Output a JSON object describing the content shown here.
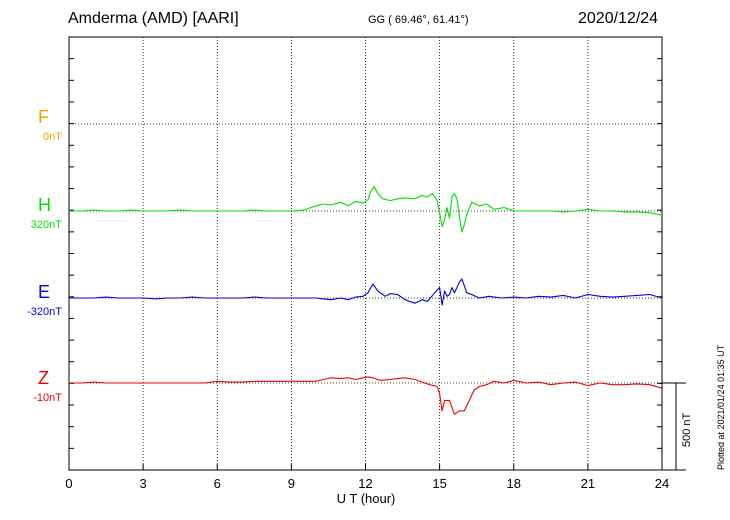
{
  "header": {
    "station": "Amderma (AMD)  [AARI]",
    "coords": "GG ( 69.46°,  61.41°)",
    "date": "2020/12/24"
  },
  "plotted_note": "Plotted at 2021/01/24 01:35 UT",
  "scale_label": "500 nT",
  "colors": {
    "F": "#f5a200",
    "H": "#00e000",
    "E": "#0000dd",
    "Z": "#ee0000"
  },
  "components": [
    {
      "name": "F",
      "baseline": "0nT"
    },
    {
      "name": "H",
      "baseline": "320nT"
    },
    {
      "name": "E",
      "baseline": "-320nT"
    },
    {
      "name": "Z",
      "baseline": "-10nT"
    }
  ],
  "chart_data": {
    "type": "line",
    "title": "Amderma (AMD)  [AARI]",
    "xlabel": "U T (hour)",
    "xlim": [
      0,
      24
    ],
    "x_ticks": [
      0,
      3,
      6,
      9,
      12,
      15,
      18,
      21,
      24
    ],
    "grid": true,
    "series": [
      {
        "name": "H",
        "baseline": "320nT",
        "x": [
          0,
          0.5,
          1,
          1.5,
          2,
          2.5,
          3,
          3.5,
          4,
          4.5,
          5,
          5.5,
          6,
          6.5,
          7,
          7.5,
          8,
          8.5,
          9,
          9.5,
          10,
          10.3,
          10.6,
          11,
          11.3,
          11.6,
          11.9,
          12.1,
          12.2,
          12.35,
          12.5,
          12.7,
          13,
          13.3,
          13.6,
          14,
          14.3,
          14.5,
          14.7,
          14.9,
          15.0,
          15.1,
          15.2,
          15.3,
          15.4,
          15.5,
          15.6,
          15.7,
          15.8,
          15.9,
          16.0,
          16.1,
          16.3,
          16.6,
          16.9,
          17.2,
          17.6,
          18,
          18.5,
          19,
          19.5,
          20,
          20.5,
          21,
          21.5,
          22,
          22.5,
          23,
          23.5,
          24
        ],
        "values": [
          0,
          0,
          5,
          0,
          0,
          5,
          0,
          0,
          0,
          5,
          0,
          0,
          0,
          0,
          0,
          5,
          0,
          0,
          0,
          5,
          30,
          40,
          35,
          50,
          30,
          55,
          45,
          65,
          110,
          140,
          100,
          70,
          60,
          70,
          75,
          70,
          90,
          80,
          100,
          60,
          -10,
          -90,
          -50,
          20,
          -40,
          80,
          100,
          70,
          -30,
          -120,
          -80,
          -20,
          50,
          30,
          40,
          10,
          20,
          0,
          0,
          0,
          0,
          -5,
          0,
          10,
          0,
          0,
          -5,
          -5,
          -10,
          -25
        ]
      },
      {
        "name": "E",
        "baseline": "-320nT",
        "x": [
          0,
          0.5,
          1,
          1.5,
          2,
          2.5,
          3,
          3.5,
          4,
          4.5,
          5,
          5.5,
          6,
          6.5,
          7,
          7.5,
          8,
          8.5,
          9,
          9.5,
          10,
          10.3,
          10.6,
          11,
          11.3,
          11.6,
          11.9,
          12.1,
          12.3,
          12.5,
          12.8,
          13,
          13.3,
          13.6,
          14,
          14.3,
          14.5,
          14.8,
          15,
          15.1,
          15.2,
          15.3,
          15.4,
          15.5,
          15.6,
          15.8,
          15.9,
          16.0,
          16.1,
          16.3,
          16.6,
          17,
          17.5,
          18,
          18.5,
          19,
          19.5,
          20,
          20.5,
          21,
          21.5,
          22,
          22.5,
          23,
          23.5,
          24
        ],
        "values": [
          0,
          0,
          0,
          5,
          0,
          0,
          0,
          -5,
          0,
          0,
          5,
          0,
          0,
          0,
          0,
          5,
          0,
          0,
          0,
          0,
          0,
          -5,
          -10,
          0,
          -10,
          5,
          10,
          30,
          80,
          40,
          10,
          25,
          20,
          -10,
          -30,
          -10,
          -20,
          30,
          60,
          -40,
          40,
          10,
          20,
          60,
          30,
          90,
          110,
          70,
          30,
          20,
          0,
          10,
          0,
          5,
          0,
          10,
          5,
          15,
          0,
          20,
          10,
          5,
          10,
          15,
          20,
          0
        ]
      },
      {
        "name": "Z",
        "baseline": "-10nT",
        "x": [
          0,
          0.5,
          1,
          1.5,
          2,
          2.5,
          3,
          3.5,
          4,
          4.5,
          5,
          5.5,
          6,
          6.5,
          7,
          7.5,
          8,
          8.5,
          9,
          9.5,
          10,
          10.3,
          10.6,
          11,
          11.3,
          11.6,
          11.9,
          12.1,
          12.3,
          12.6,
          13,
          13.3,
          13.6,
          14,
          14.3,
          14.6,
          14.9,
          15.0,
          15.1,
          15.2,
          15.4,
          15.6,
          15.8,
          16.0,
          16.2,
          16.4,
          16.6,
          16.9,
          17.2,
          17.6,
          18,
          18.5,
          19,
          19.5,
          20,
          20.5,
          21,
          21.5,
          22,
          22.5,
          23,
          23.5,
          24
        ],
        "values": [
          0,
          0,
          5,
          0,
          0,
          0,
          0,
          0,
          0,
          0,
          0,
          0,
          10,
          5,
          5,
          10,
          10,
          10,
          10,
          10,
          10,
          20,
          30,
          25,
          30,
          20,
          30,
          35,
          30,
          15,
          20,
          25,
          30,
          20,
          5,
          -10,
          -20,
          -60,
          -160,
          -100,
          -100,
          -180,
          -160,
          -160,
          -100,
          -40,
          -20,
          -10,
          10,
          0,
          15,
          0,
          5,
          -10,
          0,
          5,
          -15,
          0,
          -10,
          -10,
          -5,
          -10,
          -30
        ]
      }
    ]
  }
}
